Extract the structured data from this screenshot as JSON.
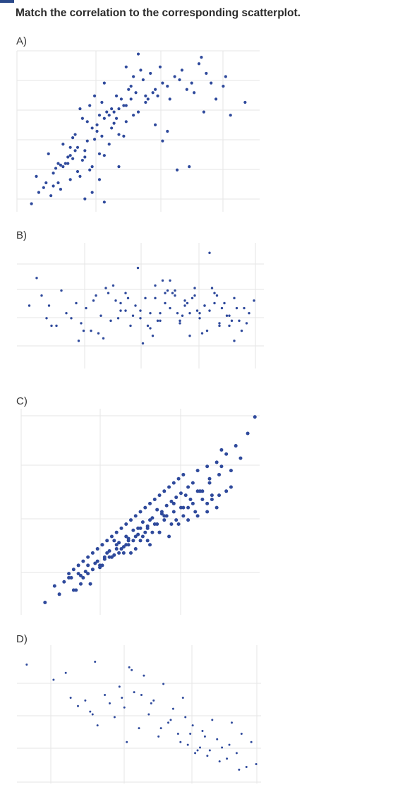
{
  "question": {
    "title": "Match the correlation to the corresponding scatterplot."
  },
  "colors": {
    "point": "#2f4a9c",
    "grid": "#e6e6e6",
    "corner": "#2b4a8a"
  },
  "chart_data": [
    {
      "label": "A)",
      "type": "scatter",
      "grid": true,
      "xlim": [
        0,
        100
      ],
      "ylim": [
        0,
        100
      ],
      "x": [
        6,
        9,
        12,
        8,
        14,
        18,
        22,
        25,
        21,
        17,
        11,
        15,
        19,
        23,
        26,
        30,
        28,
        24,
        20,
        16,
        13,
        18,
        22,
        27,
        31,
        34,
        29,
        25,
        21,
        17,
        19,
        23,
        28,
        32,
        36,
        33,
        38,
        42,
        40,
        35,
        31,
        27,
        24,
        29,
        34,
        39,
        44,
        41,
        37,
        33,
        30,
        36,
        42,
        47,
        45,
        40,
        35,
        32,
        38,
        44,
        49,
        53,
        50,
        46,
        43,
        39,
        36,
        41,
        47,
        52,
        56,
        54,
        48,
        45,
        51,
        57,
        60,
        58,
        55,
        62,
        65,
        63,
        59,
        67,
        70,
        68,
        72,
        75,
        73,
        78,
        80,
        76,
        82,
        85,
        77,
        86,
        94,
        88,
        28,
        45,
        50,
        36,
        42,
        22,
        15,
        31,
        62,
        71,
        60,
        48,
        66,
        53,
        26,
        34,
        57
      ],
      "y": [
        5,
        12,
        18,
        22,
        10,
        14,
        20,
        25,
        30,
        18,
        15,
        24,
        28,
        33,
        22,
        26,
        34,
        38,
        30,
        27,
        36,
        29,
        40,
        32,
        28,
        36,
        44,
        40,
        34,
        30,
        42,
        46,
        38,
        45,
        35,
        50,
        42,
        48,
        55,
        47,
        52,
        58,
        48,
        56,
        60,
        52,
        47,
        58,
        62,
        54,
        66,
        58,
        64,
        70,
        56,
        62,
        68,
        72,
        60,
        66,
        74,
        68,
        62,
        76,
        70,
        64,
        80,
        72,
        78,
        82,
        74,
        70,
        84,
        66,
        88,
        76,
        80,
        72,
        86,
        78,
        84,
        70,
        90,
        82,
        76,
        88,
        80,
        92,
        74,
        86,
        80,
        96,
        70,
        78,
        62,
        84,
        68,
        60,
        8,
        90,
        98,
        6,
        28,
        35,
        16,
        12,
        50,
        28,
        44,
        60,
        26,
        72,
        64,
        20,
        54
      ]
    },
    {
      "label": "B)",
      "type": "scatter",
      "grid": true,
      "xlim": [
        0,
        100
      ],
      "ylim": [
        0,
        100
      ],
      "x": [
        5,
        10,
        12,
        14,
        18,
        20,
        24,
        26,
        28,
        30,
        32,
        34,
        36,
        38,
        40,
        42,
        44,
        46,
        48,
        50,
        52,
        54,
        56,
        58,
        60,
        62,
        64,
        66,
        68,
        70,
        72,
        74,
        76,
        78,
        80,
        82,
        84,
        86,
        88,
        90,
        92,
        94,
        96,
        8,
        16,
        22,
        27,
        33,
        39,
        44,
        49,
        55,
        59,
        63,
        67,
        71,
        75,
        79,
        83,
        87,
        91,
        13,
        25,
        35,
        45,
        53,
        57,
        61,
        65,
        69,
        73,
        77,
        81,
        85,
        89,
        93,
        31,
        41,
        51,
        58,
        64,
        70,
        76,
        82,
        88,
        37,
        47,
        56,
        62,
        66,
        72,
        74,
        78,
        80,
        86,
        42,
        50,
        54,
        60,
        68
      ],
      "y": [
        50,
        58,
        40,
        34,
        62,
        44,
        52,
        36,
        48,
        30,
        58,
        42,
        64,
        38,
        54,
        46,
        60,
        34,
        50,
        40,
        56,
        44,
        66,
        38,
        52,
        48,
        62,
        36,
        54,
        44,
        58,
        40,
        50,
        46,
        60,
        34,
        52,
        42,
        56,
        38,
        48,
        44,
        54,
        72,
        34,
        40,
        30,
        28,
        66,
        46,
        80,
        26,
        70,
        60,
        42,
        56,
        28,
        64,
        48,
        38,
        30,
        50,
        22,
        24,
        56,
        34,
        38,
        62,
        44,
        52,
        46,
        30,
        58,
        42,
        48,
        36,
        54,
        40,
        20,
        44,
        58,
        26,
        50,
        36,
        22,
        60,
        42,
        56,
        70,
        38,
        64,
        44,
        92,
        52,
        34,
        52,
        46,
        32,
        60,
        50
      ]
    },
    {
      "label": "C)",
      "type": "scatter",
      "grid": true,
      "xlim": [
        0,
        100
      ],
      "ylim": [
        0,
        100
      ],
      "x": [
        10,
        14,
        16,
        18,
        20,
        21,
        22,
        23,
        24,
        25,
        26,
        27,
        28,
        29,
        30,
        31,
        32,
        33,
        34,
        35,
        36,
        37,
        38,
        39,
        40,
        41,
        42,
        43,
        44,
        45,
        46,
        47,
        48,
        49,
        50,
        51,
        52,
        53,
        54,
        55,
        56,
        57,
        58,
        59,
        60,
        61,
        62,
        63,
        64,
        65,
        66,
        67,
        68,
        70,
        72,
        74,
        76,
        78,
        80,
        82,
        84,
        86,
        88,
        90,
        92,
        95,
        98,
        20,
        24,
        28,
        32,
        36,
        40,
        44,
        48,
        52,
        56,
        60,
        64,
        68,
        72,
        76,
        80,
        25,
        30,
        35,
        40,
        45,
        50,
        55,
        60,
        65,
        70,
        22,
        26,
        30,
        34,
        38,
        42,
        46,
        50,
        54,
        58,
        62,
        66,
        70,
        74,
        78,
        82,
        86,
        28,
        33,
        38,
        43,
        48,
        53,
        58,
        63,
        68,
        73,
        78,
        83,
        88,
        34,
        39,
        44,
        49,
        54,
        59,
        64,
        69,
        74,
        79,
        84,
        37,
        41,
        45,
        47,
        51,
        53,
        57,
        61,
        67,
        71,
        75,
        79,
        83
      ],
      "y": [
        6,
        14,
        10,
        16,
        20,
        18,
        22,
        12,
        24,
        19,
        26,
        21,
        28,
        15,
        30,
        25,
        32,
        23,
        34,
        27,
        36,
        31,
        38,
        29,
        40,
        35,
        42,
        33,
        44,
        37,
        46,
        41,
        48,
        39,
        50,
        45,
        52,
        43,
        54,
        47,
        56,
        51,
        58,
        49,
        60,
        53,
        62,
        55,
        64,
        57,
        66,
        59,
        68,
        62,
        64,
        70,
        60,
        72,
        56,
        74,
        80,
        78,
        70,
        82,
        76,
        88,
        96,
        18,
        20,
        24,
        26,
        30,
        32,
        34,
        38,
        40,
        44,
        46,
        50,
        52,
        54,
        56,
        58,
        15,
        22,
        28,
        34,
        36,
        42,
        40,
        48,
        46,
        52,
        12,
        18,
        22,
        24,
        28,
        32,
        30,
        36,
        34,
        40,
        38,
        44,
        46,
        48,
        50,
        52,
        60,
        20,
        24,
        28,
        30,
        32,
        36,
        40,
        44,
        48,
        50,
        54,
        58,
        62,
        34,
        36,
        38,
        42,
        46,
        50,
        54,
        58,
        60,
        66,
        72,
        28,
        30,
        34,
        36,
        38,
        42,
        44,
        48,
        52,
        56,
        60,
        64,
        68
      ]
    },
    {
      "label": "D)",
      "type": "scatter",
      "grid": true,
      "xlim": [
        0,
        100
      ],
      "ylim": [
        0,
        100
      ],
      "x": [
        4,
        15,
        20,
        22,
        28,
        30,
        32,
        36,
        38,
        40,
        42,
        44,
        45,
        46,
        48,
        50,
        52,
        54,
        56,
        58,
        60,
        62,
        64,
        66,
        68,
        70,
        72,
        74,
        76,
        78,
        80,
        82,
        84,
        86,
        88,
        90,
        92,
        94,
        96,
        98,
        25,
        33,
        47,
        55,
        63,
        71,
        79,
        87,
        31,
        43,
        51,
        59,
        67,
        75,
        83,
        91,
        69,
        73,
        77
      ],
      "y": [
        86,
        75,
        80,
        62,
        60,
        52,
        88,
        64,
        58,
        48,
        70,
        55,
        30,
        84,
        66,
        40,
        78,
        50,
        60,
        34,
        72,
        44,
        54,
        36,
        62,
        28,
        42,
        24,
        38,
        20,
        46,
        32,
        26,
        18,
        44,
        22,
        36,
        12,
        30,
        14,
        56,
        42,
        82,
        58,
        46,
        36,
        24,
        28,
        50,
        62,
        64,
        40,
        30,
        26,
        16,
        10,
        48,
        22,
        34
      ]
    }
  ]
}
